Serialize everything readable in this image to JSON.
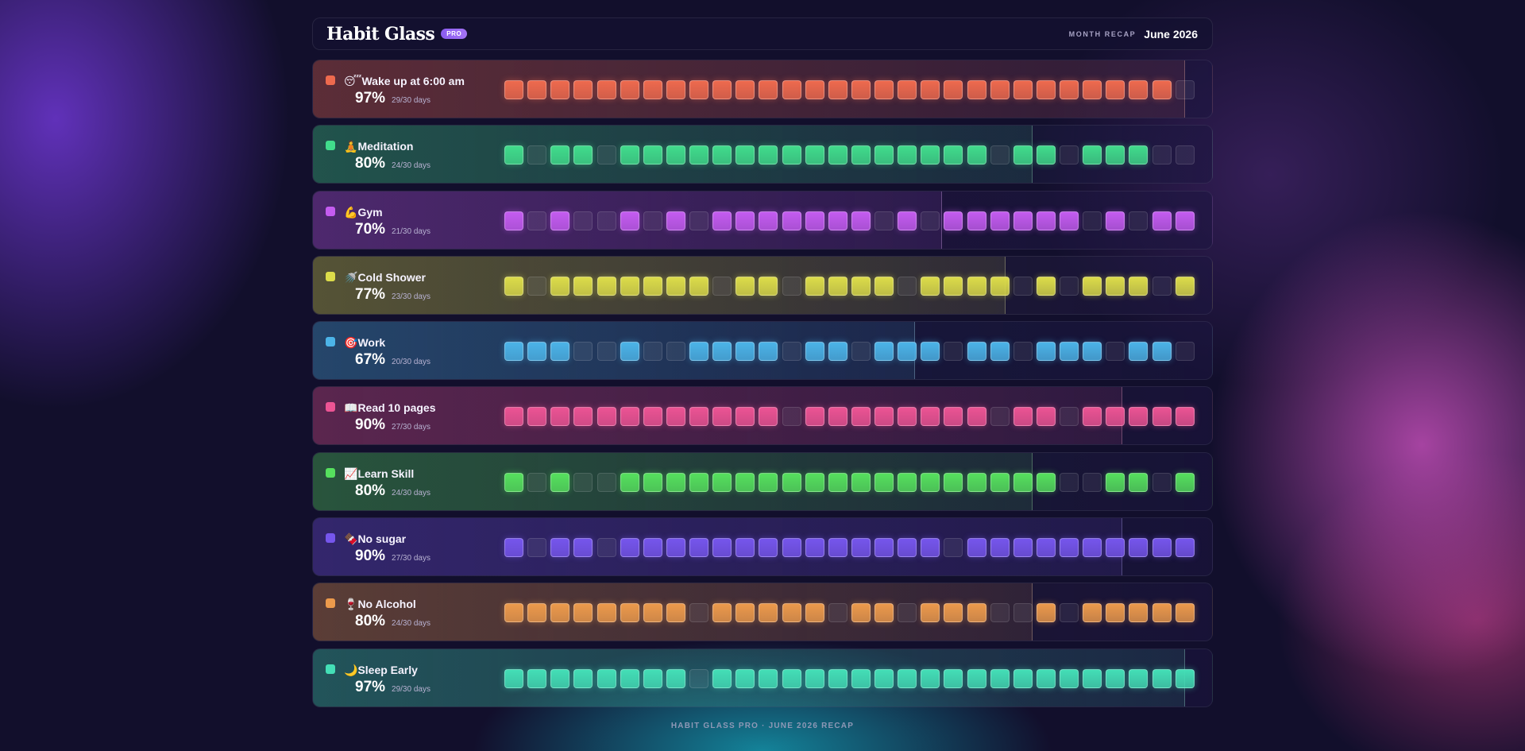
{
  "app": {
    "title": "Habit Glass",
    "badge": "PRO"
  },
  "recap": {
    "label": "MONTH RECAP",
    "month": "June 2026"
  },
  "footer": "HABIT GLASS PRO · JUNE 2026 RECAP",
  "habits": [
    {
      "emoji": "😴",
      "name": "Wake up at 6:00 am",
      "percent": "97%",
      "days_text": "29/30 days",
      "completion": 0.97,
      "color": "#ee6a4e",
      "days": [
        1,
        1,
        1,
        1,
        1,
        1,
        1,
        1,
        1,
        1,
        1,
        1,
        1,
        1,
        1,
        1,
        1,
        1,
        1,
        1,
        1,
        1,
        1,
        1,
        1,
        1,
        1,
        1,
        1,
        0
      ]
    },
    {
      "emoji": "🧘",
      "name": "Meditation",
      "percent": "80%",
      "days_text": "24/30 days",
      "completion": 0.8,
      "color": "#41dc8c",
      "days": [
        1,
        0,
        1,
        1,
        0,
        1,
        1,
        1,
        1,
        1,
        1,
        1,
        1,
        1,
        1,
        1,
        1,
        1,
        1,
        1,
        1,
        0,
        1,
        1,
        0,
        1,
        1,
        1,
        0,
        0
      ]
    },
    {
      "emoji": "💪",
      "name": "Gym",
      "percent": "70%",
      "days_text": "21/30 days",
      "completion": 0.7,
      "color": "#c45cf0",
      "days": [
        1,
        0,
        1,
        0,
        0,
        1,
        0,
        1,
        0,
        1,
        1,
        1,
        1,
        1,
        1,
        1,
        0,
        1,
        0,
        1,
        1,
        1,
        1,
        1,
        1,
        0,
        1,
        0,
        1,
        1
      ]
    },
    {
      "emoji": "🚿",
      "name": "Cold Shower",
      "percent": "77%",
      "days_text": "23/30 days",
      "completion": 0.77,
      "color": "#dcdc4a",
      "days": [
        1,
        0,
        1,
        1,
        1,
        1,
        1,
        1,
        1,
        0,
        1,
        1,
        0,
        1,
        1,
        1,
        1,
        0,
        1,
        1,
        1,
        1,
        0,
        1,
        0,
        1,
        1,
        1,
        0,
        1
      ]
    },
    {
      "emoji": "🎯",
      "name": "Work",
      "percent": "67%",
      "days_text": "20/30 days",
      "completion": 0.67,
      "color": "#4cb4e8",
      "days": [
        1,
        1,
        1,
        0,
        0,
        1,
        0,
        0,
        1,
        1,
        1,
        1,
        0,
        1,
        1,
        0,
        1,
        1,
        1,
        0,
        1,
        1,
        0,
        1,
        1,
        1,
        0,
        1,
        1,
        0
      ]
    },
    {
      "emoji": "📖",
      "name": "Read 10 pages",
      "percent": "90%",
      "days_text": "27/30 days",
      "completion": 0.9,
      "color": "#ec5494",
      "days": [
        1,
        1,
        1,
        1,
        1,
        1,
        1,
        1,
        1,
        1,
        1,
        1,
        0,
        1,
        1,
        1,
        1,
        1,
        1,
        1,
        1,
        0,
        1,
        1,
        0,
        1,
        1,
        1,
        1,
        1
      ]
    },
    {
      "emoji": "📈",
      "name": "Learn Skill",
      "percent": "80%",
      "days_text": "24/30 days",
      "completion": 0.8,
      "color": "#56e05e",
      "days": [
        1,
        0,
        1,
        0,
        0,
        1,
        1,
        1,
        1,
        1,
        1,
        1,
        1,
        1,
        1,
        1,
        1,
        1,
        1,
        1,
        1,
        1,
        1,
        1,
        0,
        0,
        1,
        1,
        0,
        1
      ]
    },
    {
      "emoji": "🍫",
      "name": "No sugar",
      "percent": "90%",
      "days_text": "27/30 days",
      "completion": 0.9,
      "color": "#7656ec",
      "days": [
        1,
        0,
        1,
        1,
        0,
        1,
        1,
        1,
        1,
        1,
        1,
        1,
        1,
        1,
        1,
        1,
        1,
        1,
        1,
        0,
        1,
        1,
        1,
        1,
        1,
        1,
        1,
        1,
        1,
        1
      ]
    },
    {
      "emoji": "🍷",
      "name": "No Alcohol",
      "percent": "80%",
      "days_text": "24/30 days",
      "completion": 0.8,
      "color": "#ec9a4c",
      "days": [
        1,
        1,
        1,
        1,
        1,
        1,
        1,
        1,
        0,
        1,
        1,
        1,
        1,
        1,
        0,
        1,
        1,
        0,
        1,
        1,
        1,
        0,
        0,
        1,
        0,
        1,
        1,
        1,
        1,
        1
      ]
    },
    {
      "emoji": "🌙",
      "name": "Sleep Early",
      "percent": "97%",
      "days_text": "29/30 days",
      "completion": 0.97,
      "color": "#44deb6",
      "days": [
        1,
        1,
        1,
        1,
        1,
        1,
        1,
        1,
        0,
        1,
        1,
        1,
        1,
        1,
        1,
        1,
        1,
        1,
        1,
        1,
        1,
        1,
        1,
        1,
        1,
        1,
        1,
        1,
        1,
        1
      ]
    }
  ]
}
